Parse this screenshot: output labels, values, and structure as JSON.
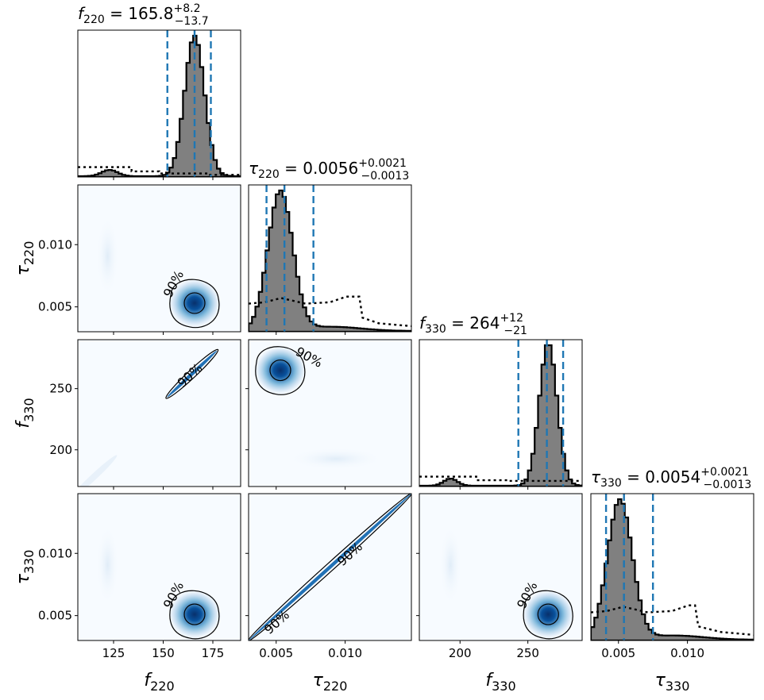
{
  "chart_data": {
    "type": "corner",
    "parameters": [
      {
        "id": "f220",
        "axis_label": "f220",
        "label_base": "f",
        "label_sub": "220",
        "title_prefix": "f",
        "title_sub": "220",
        "title_value": " = 165.8",
        "title_sup": "+8.2",
        "title_inf": "−13.7",
        "range": [
          107,
          189
        ],
        "ticks": [
          125,
          150,
          175
        ],
        "tick_labels": [
          "125",
          "150",
          "175"
        ],
        "quantiles": [
          152.1,
          165.8,
          174.0
        ],
        "posterior_peak": 165.8,
        "posterior_width": 5.0
      },
      {
        "id": "tau220",
        "axis_label": "τ220",
        "label_base": "τ",
        "label_sub": "220",
        "title_prefix": "τ",
        "title_sub": "220",
        "title_value": " = 0.0056",
        "title_sup": "+0.0021",
        "title_inf": "−0.0013",
        "range": [
          0.003,
          0.0148
        ],
        "ticks": [
          0.005,
          0.01
        ],
        "tick_labels": [
          "0.005",
          "0.010"
        ],
        "quantiles": [
          0.0043,
          0.0056,
          0.0077
        ],
        "posterior_peak": 0.0053,
        "posterior_width": 0.0009
      },
      {
        "id": "f330",
        "axis_label": "f330",
        "label_base": "f",
        "label_sub": "330",
        "title_prefix": "f",
        "title_sub": "330",
        "title_value": " = 264",
        "title_sup": "+12",
        "title_inf": "−21",
        "range": [
          170,
          290
        ],
        "ticks": [
          200,
          250
        ],
        "tick_labels": [
          "200",
          "250"
        ],
        "quantiles": [
          243,
          264,
          276
        ],
        "posterior_peak": 265,
        "posterior_width": 6.5
      },
      {
        "id": "tau330",
        "axis_label": "τ330",
        "label_base": "τ",
        "label_sub": "330",
        "title_prefix": "τ",
        "title_sub": "330",
        "title_value": " = 0.0054",
        "title_sup": "+0.0021",
        "title_inf": "−0.0013",
        "range": [
          0.003,
          0.0148
        ],
        "ticks": [
          0.005,
          0.01
        ],
        "tick_labels": [
          "0.005",
          "0.010"
        ],
        "quantiles": [
          0.0041,
          0.0054,
          0.0075
        ],
        "posterior_peak": 0.0051,
        "posterior_width": 0.0009
      }
    ],
    "contour_label": "90%",
    "colors": {
      "histogram_fill": "#808080",
      "quantile_line": "#1f77b4",
      "density_low": "#f7fbff",
      "density_high": "#08519c"
    }
  }
}
